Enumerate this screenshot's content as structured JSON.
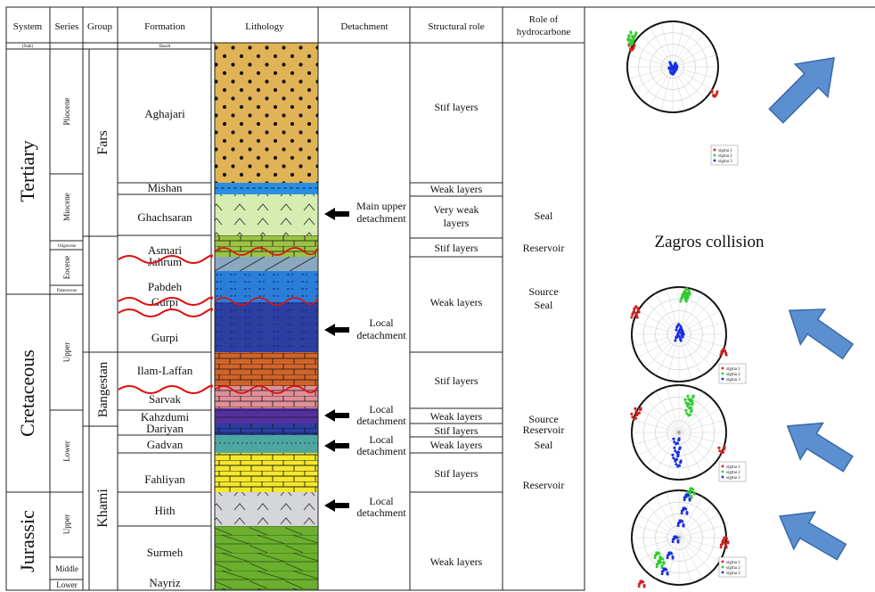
{
  "header": {
    "system": "System",
    "series": "Series",
    "group": "Group",
    "formation": "Formation",
    "lithology": "Lithology",
    "detachment": "Detachment",
    "structural_role": "Structural role",
    "hc_role_line1": "Role of",
    "hc_role_line2": "hydrocarbone",
    "system_sub": "(Stab)",
    "formation_sub": "Basalt"
  },
  "systems": {
    "tertiary": "Tertiary",
    "cretaceous": "Cretaceous",
    "jurassic": "Jurassic"
  },
  "series": {
    "pliocene": "Pliocene",
    "miocene": "Miocene",
    "oligocene": "Oligocene",
    "eocene": "Eocene",
    "palaeocene": "Palaeocene",
    "upper_k": "Upper",
    "lower_k": "Lower",
    "upper_j": "Upper",
    "middle_j": "Middle",
    "lower_j": "Lower"
  },
  "groups": {
    "fars": "Fars",
    "bangestan": "Bangestan",
    "khami": "Khami"
  },
  "formations": {
    "aghajari": "Aghajari",
    "mishan": "Mishan",
    "ghachsaran": "Ghachsaran",
    "asmari": "Asmari",
    "jahrum": "Jahrum",
    "pabdeh": "Pabdeh",
    "gurpi_top": "Gurpi",
    "gurpi": "Gurpi",
    "ilam": "Ilam-Laffan",
    "sarvak": "Sarvak",
    "kahzdumi": "Kahzdumi",
    "dariyan": "Dariyan",
    "gadvan": "Gadvan",
    "fahliyan": "Fahliyan",
    "hith": "Hith",
    "surmeh": "Surmeh",
    "nayriz": "Nayriz"
  },
  "detachments": {
    "main_1": "Main upper",
    "main_2": "detachment",
    "local1_1": "Local",
    "local1_2": "detachment",
    "local2_1": "Local",
    "local2_2": "detachment",
    "local3_1": "Local",
    "local3_2": "detachment",
    "local4_1": "Local",
    "local4_2": "detachment"
  },
  "structural": {
    "stif1": "Stif layers",
    "weak_mishan": "Weak layers",
    "veryweak_1": "Very weak",
    "veryweak_2": "layers",
    "stif_asmari": "Stif layers",
    "weak_pabdeh": "Weak layers",
    "stif_ilam": "Stif layers",
    "weak_kahz": "Weak layers",
    "stif_dariyan": "Stif layers",
    "weak_gadvan": "Weak layers",
    "stif_fahliyan": "Stif layers",
    "weak_bottom": "Weak layers"
  },
  "hc_roles": {
    "seal1": "Seal",
    "reservoir1": "Reservoir",
    "source1": "Source",
    "seal2": "Seal",
    "source2": "Source",
    "reservoir2": "Reservoir",
    "seal3": "Seal",
    "reservoir3": "Reservoir"
  },
  "right_panel": {
    "title": "Zagros collision",
    "legend": [
      "sigma 1",
      "sigma 2",
      "sigma 3"
    ],
    "colors": {
      "sigma1": "#d42020",
      "sigma2": "#2ecc2e",
      "sigma3": "#1a2ee0",
      "arrow": "#5b8fd0",
      "arrow_edge": "#3a6aa8"
    },
    "stereonet_count": 4,
    "arrow_directions": [
      "north-east",
      "north-west",
      "north-west",
      "north-west"
    ]
  },
  "lithology_colors": {
    "sandstone": "#e0b356",
    "blue": "#2a8fe0",
    "evaporite": "#d6ecb0",
    "limestone_green": "#9cc444",
    "grey_blue": "#8aa8c0",
    "shale_blue": "#2a7ed8",
    "navy": "#2c3ea0",
    "orange": "#d0642a",
    "pink": "#e09098",
    "purple": "#55309a",
    "teal": "#4ea6a0",
    "yellow": "#f5e82a",
    "light_grey": "#d4d6da",
    "green": "#6ab02e"
  }
}
